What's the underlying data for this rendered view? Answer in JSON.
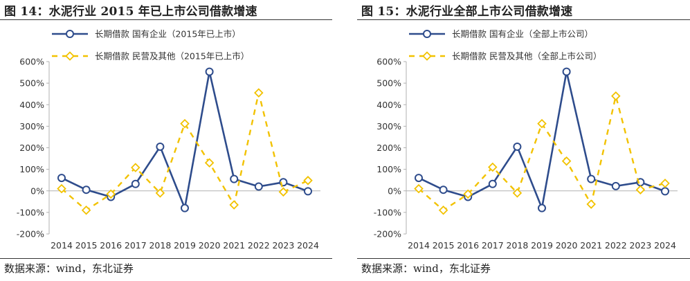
{
  "figures": [
    {
      "title": "图 14：水泥行业 2015 年已上市公司借款增速",
      "source": "数据来源：wind，东北证券",
      "chart_data": {
        "type": "line",
        "categories": [
          "2014",
          "2015",
          "2016",
          "2017",
          "2018",
          "2019",
          "2020",
          "2021",
          "2022",
          "2023",
          "2024"
        ],
        "y_ticks": [
          "600%",
          "500%",
          "400%",
          "300%",
          "200%",
          "100%",
          "0%",
          "-100%",
          "-200%"
        ],
        "ylim": [
          -200,
          600
        ],
        "grid": false,
        "legend_position": "top-left",
        "series": [
          {
            "name": "长期借款  国有企业（2015年已上市）",
            "style": "solid-circle",
            "color": "#2E4C8C",
            "values": [
              60,
              5,
              -28,
              32,
              205,
              -80,
              553,
              55,
              20,
              40,
              -2
            ]
          },
          {
            "name": "长期借款  民营及其他（2015年已上市）",
            "style": "dashed-diamond",
            "color": "#F2C200",
            "values": [
              10,
              -90,
              -15,
              108,
              -10,
              312,
              130,
              -65,
              455,
              -5,
              48
            ]
          }
        ]
      }
    },
    {
      "title": "图 15：水泥行业全部上市公司借款增速",
      "source": "数据来源：wind，东北证券",
      "chart_data": {
        "type": "line",
        "categories": [
          "2014",
          "2015",
          "2016",
          "2017",
          "2018",
          "2019",
          "2020",
          "2021",
          "2022",
          "2023",
          "2024"
        ],
        "y_ticks": [
          "600%",
          "500%",
          "400%",
          "300%",
          "200%",
          "100%",
          "0%",
          "-100%",
          "-200%"
        ],
        "ylim": [
          -200,
          600
        ],
        "grid": false,
        "legend_position": "top-left",
        "series": [
          {
            "name": "长期借款  国有企业（全部上市公司）",
            "style": "solid-circle",
            "color": "#2E4C8C",
            "values": [
              60,
              5,
              -28,
              32,
              205,
              -80,
              553,
              55,
              22,
              40,
              -2
            ]
          },
          {
            "name": "长期借款  民营及其他（全部上市公司）",
            "style": "dashed-diamond",
            "color": "#F2C200",
            "values": [
              10,
              -90,
              -15,
              110,
              -10,
              312,
              138,
              -62,
              440,
              5,
              35
            ]
          }
        ]
      }
    }
  ]
}
